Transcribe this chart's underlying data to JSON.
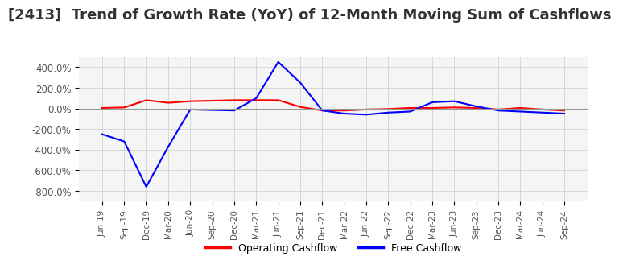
{
  "title": "[2413]  Trend of Growth Rate (YoY) of 12-Month Moving Sum of Cashflows",
  "title_fontsize": 13,
  "ylim": [
    -900,
    500
  ],
  "yticks": [
    -800,
    -600,
    -400,
    -200,
    0,
    200,
    400
  ],
  "ytick_labels": [
    "-800.0%",
    "-600.0%",
    "-400.0%",
    "-200.0%",
    "0.0%",
    "200.0%",
    "400.0%"
  ],
  "legend_labels": [
    "Operating Cashflow",
    "Free Cashflow"
  ],
  "legend_colors": [
    "red",
    "blue"
  ],
  "x_labels": [
    "Jun-19",
    "Sep-19",
    "Dec-19",
    "Mar-20",
    "Jun-20",
    "Sep-20",
    "Dec-20",
    "Mar-21",
    "Jun-21",
    "Sep-21",
    "Dec-21",
    "Mar-22",
    "Jun-22",
    "Sep-22",
    "Dec-22",
    "Mar-23",
    "Jun-23",
    "Sep-23",
    "Dec-23",
    "Mar-24",
    "Jun-24",
    "Sep-24"
  ],
  "operating_cashflow": [
    5,
    10,
    80,
    55,
    70,
    75,
    80,
    80,
    80,
    15,
    -20,
    -20,
    -10,
    -5,
    5,
    5,
    10,
    5,
    -10,
    5,
    -10,
    -20
  ],
  "free_cashflow": [
    -250,
    -320,
    -760,
    -370,
    -10,
    -15,
    -20,
    100,
    450,
    250,
    -20,
    -50,
    -60,
    -40,
    -30,
    60,
    70,
    20,
    -20,
    -30,
    -40,
    -50
  ],
  "line_width": 1.5,
  "grid_color": "#cccccc",
  "background_color": "#ffffff",
  "plot_bg_color": "#f5f5f5"
}
